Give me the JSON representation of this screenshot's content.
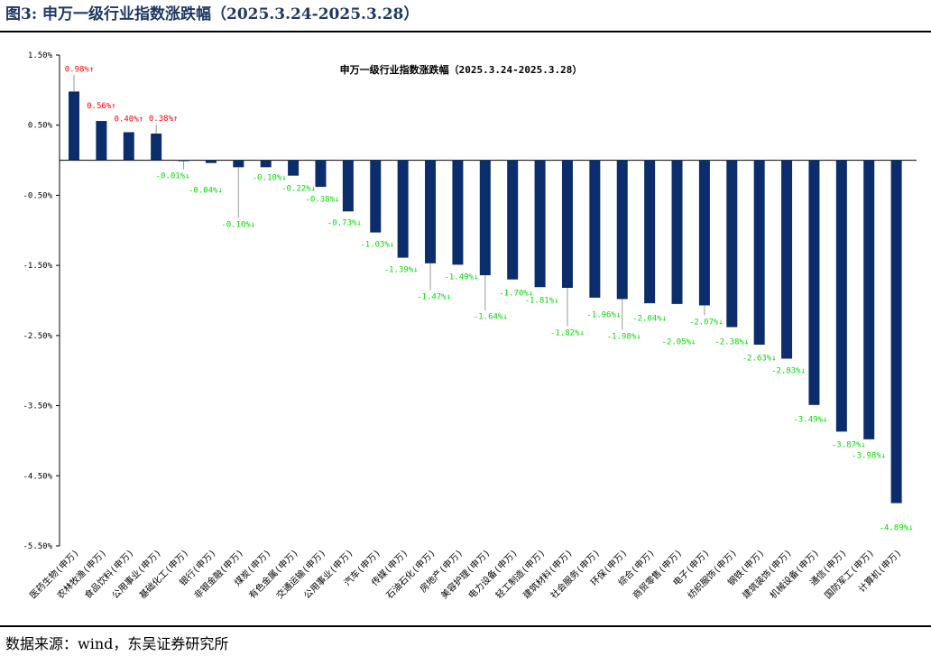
{
  "figure_title": "图3:  申万一级行业指数涨跌幅（2025.3.24-2025.3.28）",
  "source": "数据来源：wind，东吴证券研究所",
  "chart_data": {
    "type": "bar",
    "title": "申万一级行业指数涨跌幅（2025.3.24-2025.3.28）",
    "xlabel": "",
    "ylabel": "",
    "ylim": [
      -5.5,
      1.5
    ],
    "yticks": [
      1.5,
      0.5,
      -0.5,
      -1.5,
      -2.5,
      -3.5,
      -4.5,
      -5.5
    ],
    "ytick_labels": [
      "1.50%",
      "0.50%",
      "-0.50%",
      "-1.50%",
      "-2.50%",
      "-3.50%",
      "-4.50%",
      "-5.50%"
    ],
    "grid": false,
    "legend": "none",
    "bar_color": "#0b2d6b",
    "up_label_color": "#ff0000",
    "down_label_color": "#00dd00",
    "categories": [
      "医药生物(申万)",
      "农林牧渔(申万)",
      "食品饮料(申万)",
      "公用事业(申万)",
      "基础化工(申万)",
      "银行(申万)",
      "非银金融(申万)",
      "煤炭(申万)",
      "有色金属(申万)",
      "交通运输(申万)",
      "公用事业(申万)",
      "汽车(申万)",
      "传媒(申万)",
      "石油石化(申万)",
      "房地产(申万)",
      "美容护理(申万)",
      "电力设备(申万)",
      "轻工制造(申万)",
      "建筑材料(申万)",
      "社会服务(申万)",
      "环保(申万)",
      "综合(申万)",
      "商贸零售(申万)",
      "电子(申万)",
      "纺织服饰(申万)",
      "钢铁(申万)",
      "建筑装饰(申万)",
      "机械设备(申万)",
      "通信(申万)",
      "国防军工(申万)",
      "计算机(申万)"
    ],
    "values": [
      0.98,
      0.56,
      0.4,
      0.38,
      -0.01,
      -0.04,
      -0.1,
      -0.1,
      -0.22,
      -0.38,
      -0.73,
      -1.03,
      -1.39,
      -1.47,
      -1.49,
      -1.64,
      -1.7,
      -1.81,
      -1.82,
      -1.96,
      -1.98,
      -2.04,
      -2.05,
      -2.07,
      -2.38,
      -2.63,
      -2.83,
      -3.49,
      -3.87,
      -3.98,
      -4.89
    ],
    "data_labels": [
      "0.98%↑",
      "0.56%↑",
      "0.40%↑",
      "0.38%↑",
      "-0.01%↓",
      "-0.04%↓",
      "-0.10%↓",
      "-0.10%↓",
      "-0.22%↓",
      "-0.38%↓",
      "-0.73%↓",
      "-1.03%↓",
      "-1.39%↓",
      "-1.47%↓",
      "-1.49%↓",
      "-1.64%↓",
      "-1.70%↓",
      "-1.81%↓",
      "-1.82%↓",
      "-1.96%↓",
      "-1.98%↓",
      "-2.04%↓",
      "-2.05%↓",
      "-2.07%↓",
      "-2.38%↓",
      "-2.63%↓",
      "-2.83%↓",
      "-3.49%↓",
      "-3.87%↓",
      "-3.98%↓",
      "-4.89%↓"
    ]
  }
}
